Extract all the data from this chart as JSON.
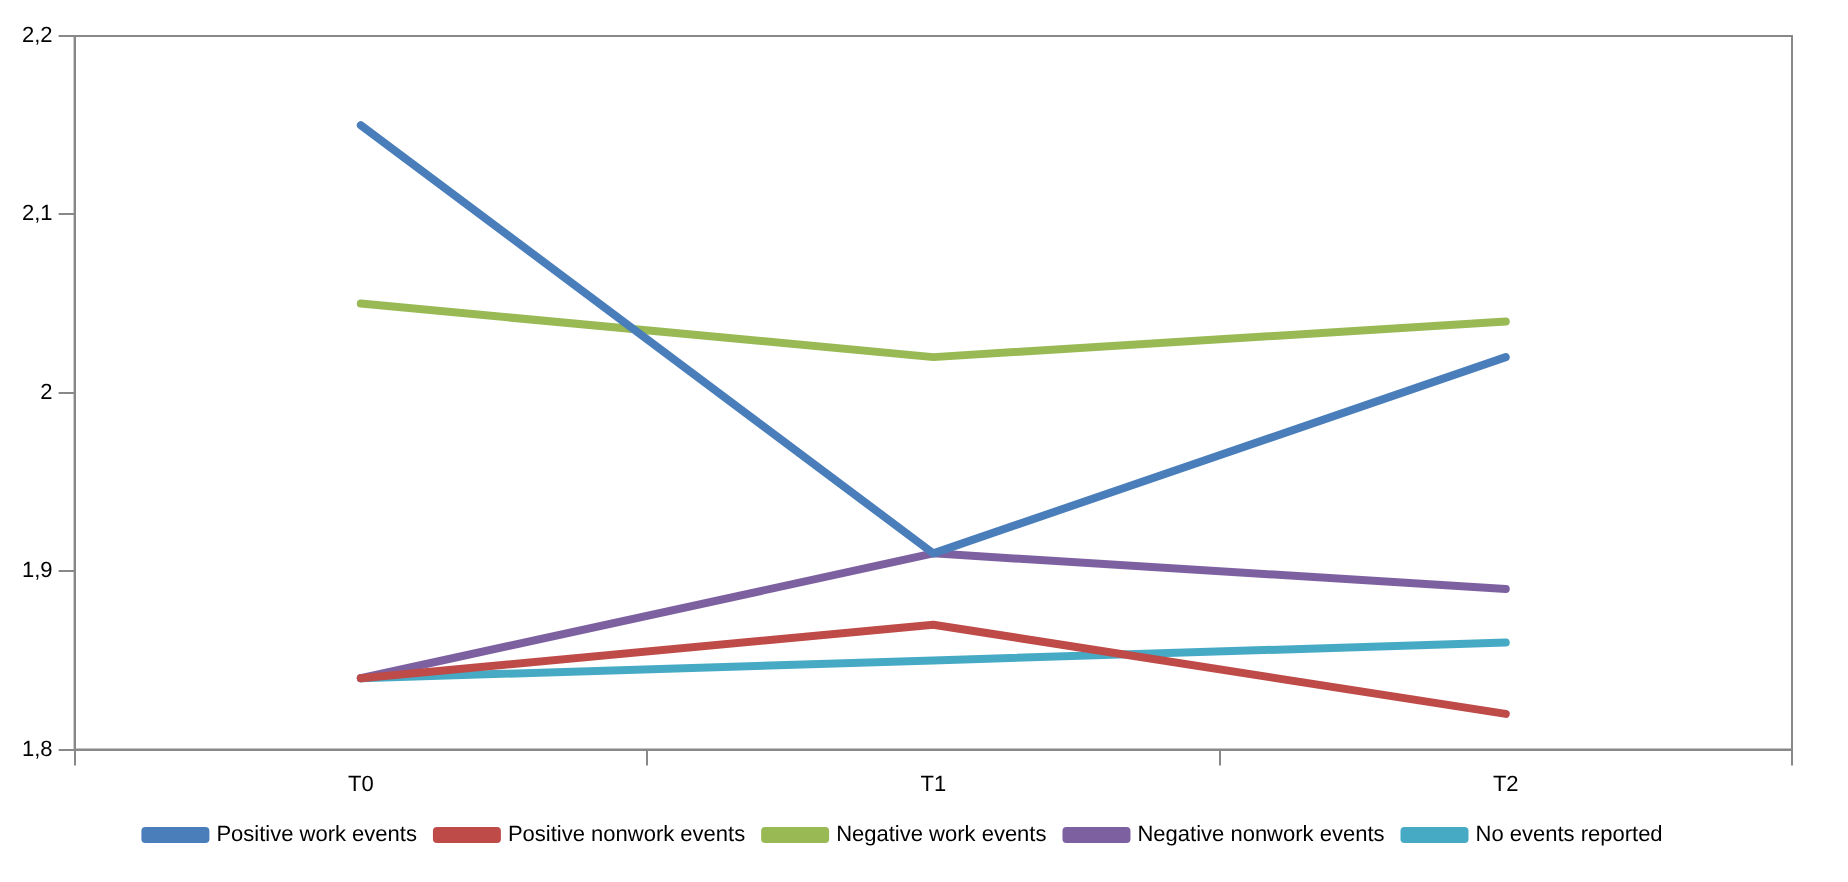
{
  "chart_data": {
    "type": "line",
    "categories": [
      "T0",
      "T1",
      "T2"
    ],
    "series": [
      {
        "name": "Positive work events",
        "color": "#4a7ebb",
        "values": [
          2.15,
          1.91,
          2.02
        ]
      },
      {
        "name": "Positive nonwork events",
        "color": "#be4b48",
        "values": [
          1.84,
          1.87,
          1.82
        ]
      },
      {
        "name": "Negative work events",
        "color": "#98b954",
        "values": [
          2.05,
          2.02,
          2.04
        ]
      },
      {
        "name": "Negative nonwork events",
        "color": "#7d60a0",
        "values": [
          1.84,
          1.91,
          1.89
        ]
      },
      {
        "name": "No events reported",
        "color": "#46aac5",
        "values": [
          1.84,
          1.85,
          1.86
        ]
      }
    ],
    "ylim": [
      1.8,
      2.2
    ],
    "yticks": [
      {
        "value": 1.8,
        "label": "1,8"
      },
      {
        "value": 1.9,
        "label": "1,9"
      },
      2,
      {
        "value": 2.1,
        "label": "2,1"
      },
      {
        "value": 2.2,
        "label": "2,2"
      }
    ],
    "grid": false,
    "legend": "bottom",
    "marker": "none",
    "line_style": "solid"
  }
}
